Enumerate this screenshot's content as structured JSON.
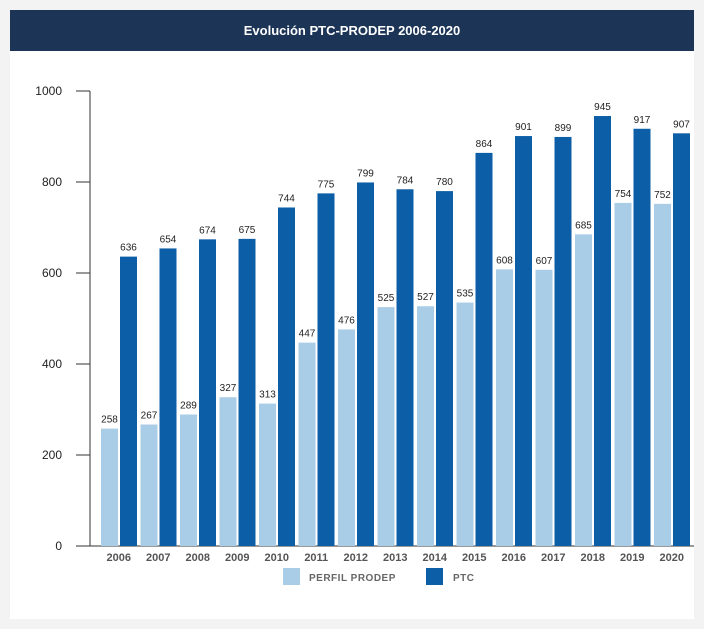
{
  "header": {
    "title": "Evolución PTC-PRODEP 2006-2020"
  },
  "colors": {
    "header_bg": "#1c3557",
    "series_light": "#a9cde6",
    "series_dark": "#0c5ea6"
  },
  "chart_data": {
    "type": "bar",
    "title": "Evolución PTC-PRODEP 2006-2020",
    "xlabel": "",
    "ylabel": "",
    "ylim": [
      0,
      1000
    ],
    "yticks": [
      0,
      200,
      400,
      600,
      800,
      1000
    ],
    "grid": false,
    "legend_position": "bottom",
    "categories": [
      "2006",
      "2007",
      "2008",
      "2009",
      "2010",
      "2011",
      "2012",
      "2013",
      "2014",
      "2015",
      "2016",
      "2017",
      "2018",
      "2019",
      "2020"
    ],
    "series": [
      {
        "name": "PERFIL PRODEP",
        "color": "#a9cde6",
        "values": [
          258,
          267,
          289,
          327,
          313,
          447,
          476,
          525,
          527,
          535,
          608,
          607,
          685,
          754,
          752
        ]
      },
      {
        "name": "PTC",
        "color": "#0c5ea6",
        "values": [
          636,
          654,
          674,
          675,
          744,
          775,
          799,
          784,
          780,
          864,
          901,
          899,
          945,
          917,
          907
        ]
      }
    ]
  }
}
